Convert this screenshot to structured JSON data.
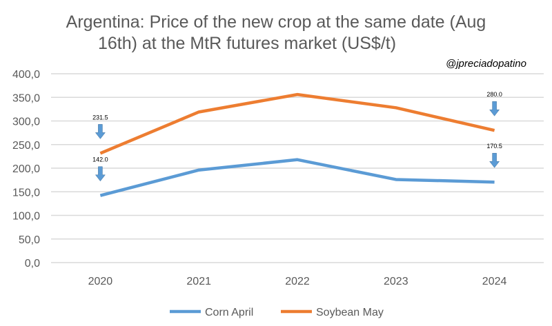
{
  "chart_data": {
    "type": "line",
    "title": "Argentina: Price of the new crop at the same date (Aug 16th) at the MtR futures market (US$/t)",
    "title_lines": [
      "Argentina: Price of the new crop at the same date (Aug",
      "16th) at the MtR futures market (US$/t)"
    ],
    "watermark": "@jpreciadopatino",
    "categories": [
      "2020",
      "2021",
      "2022",
      "2023",
      "2024"
    ],
    "series": [
      {
        "name": "Corn April",
        "color": "#5B9BD5",
        "values": [
          142.0,
          196,
          218,
          176,
          170.5
        ]
      },
      {
        "name": "Soybean May",
        "color": "#ED7D31",
        "values": [
          231.5,
          319,
          356,
          328,
          280.0
        ]
      }
    ],
    "ylim": [
      0,
      400
    ],
    "yticks": [
      "0,0",
      "50,0",
      "100,0",
      "150,0",
      "200,0",
      "250,0",
      "300,0",
      "350,0",
      "400,0"
    ],
    "grid": true,
    "legend": "bottom",
    "annotations": [
      {
        "text": "231.5",
        "series": "Soybean May",
        "category": "2020"
      },
      {
        "text": "280.0",
        "series": "Soybean May",
        "category": "2024"
      },
      {
        "text": "142.0",
        "series": "Corn April",
        "category": "2020"
      },
      {
        "text": "170.5",
        "series": "Corn April",
        "category": "2024"
      }
    ],
    "annotation_arrow_color": "#5B9BD5"
  }
}
